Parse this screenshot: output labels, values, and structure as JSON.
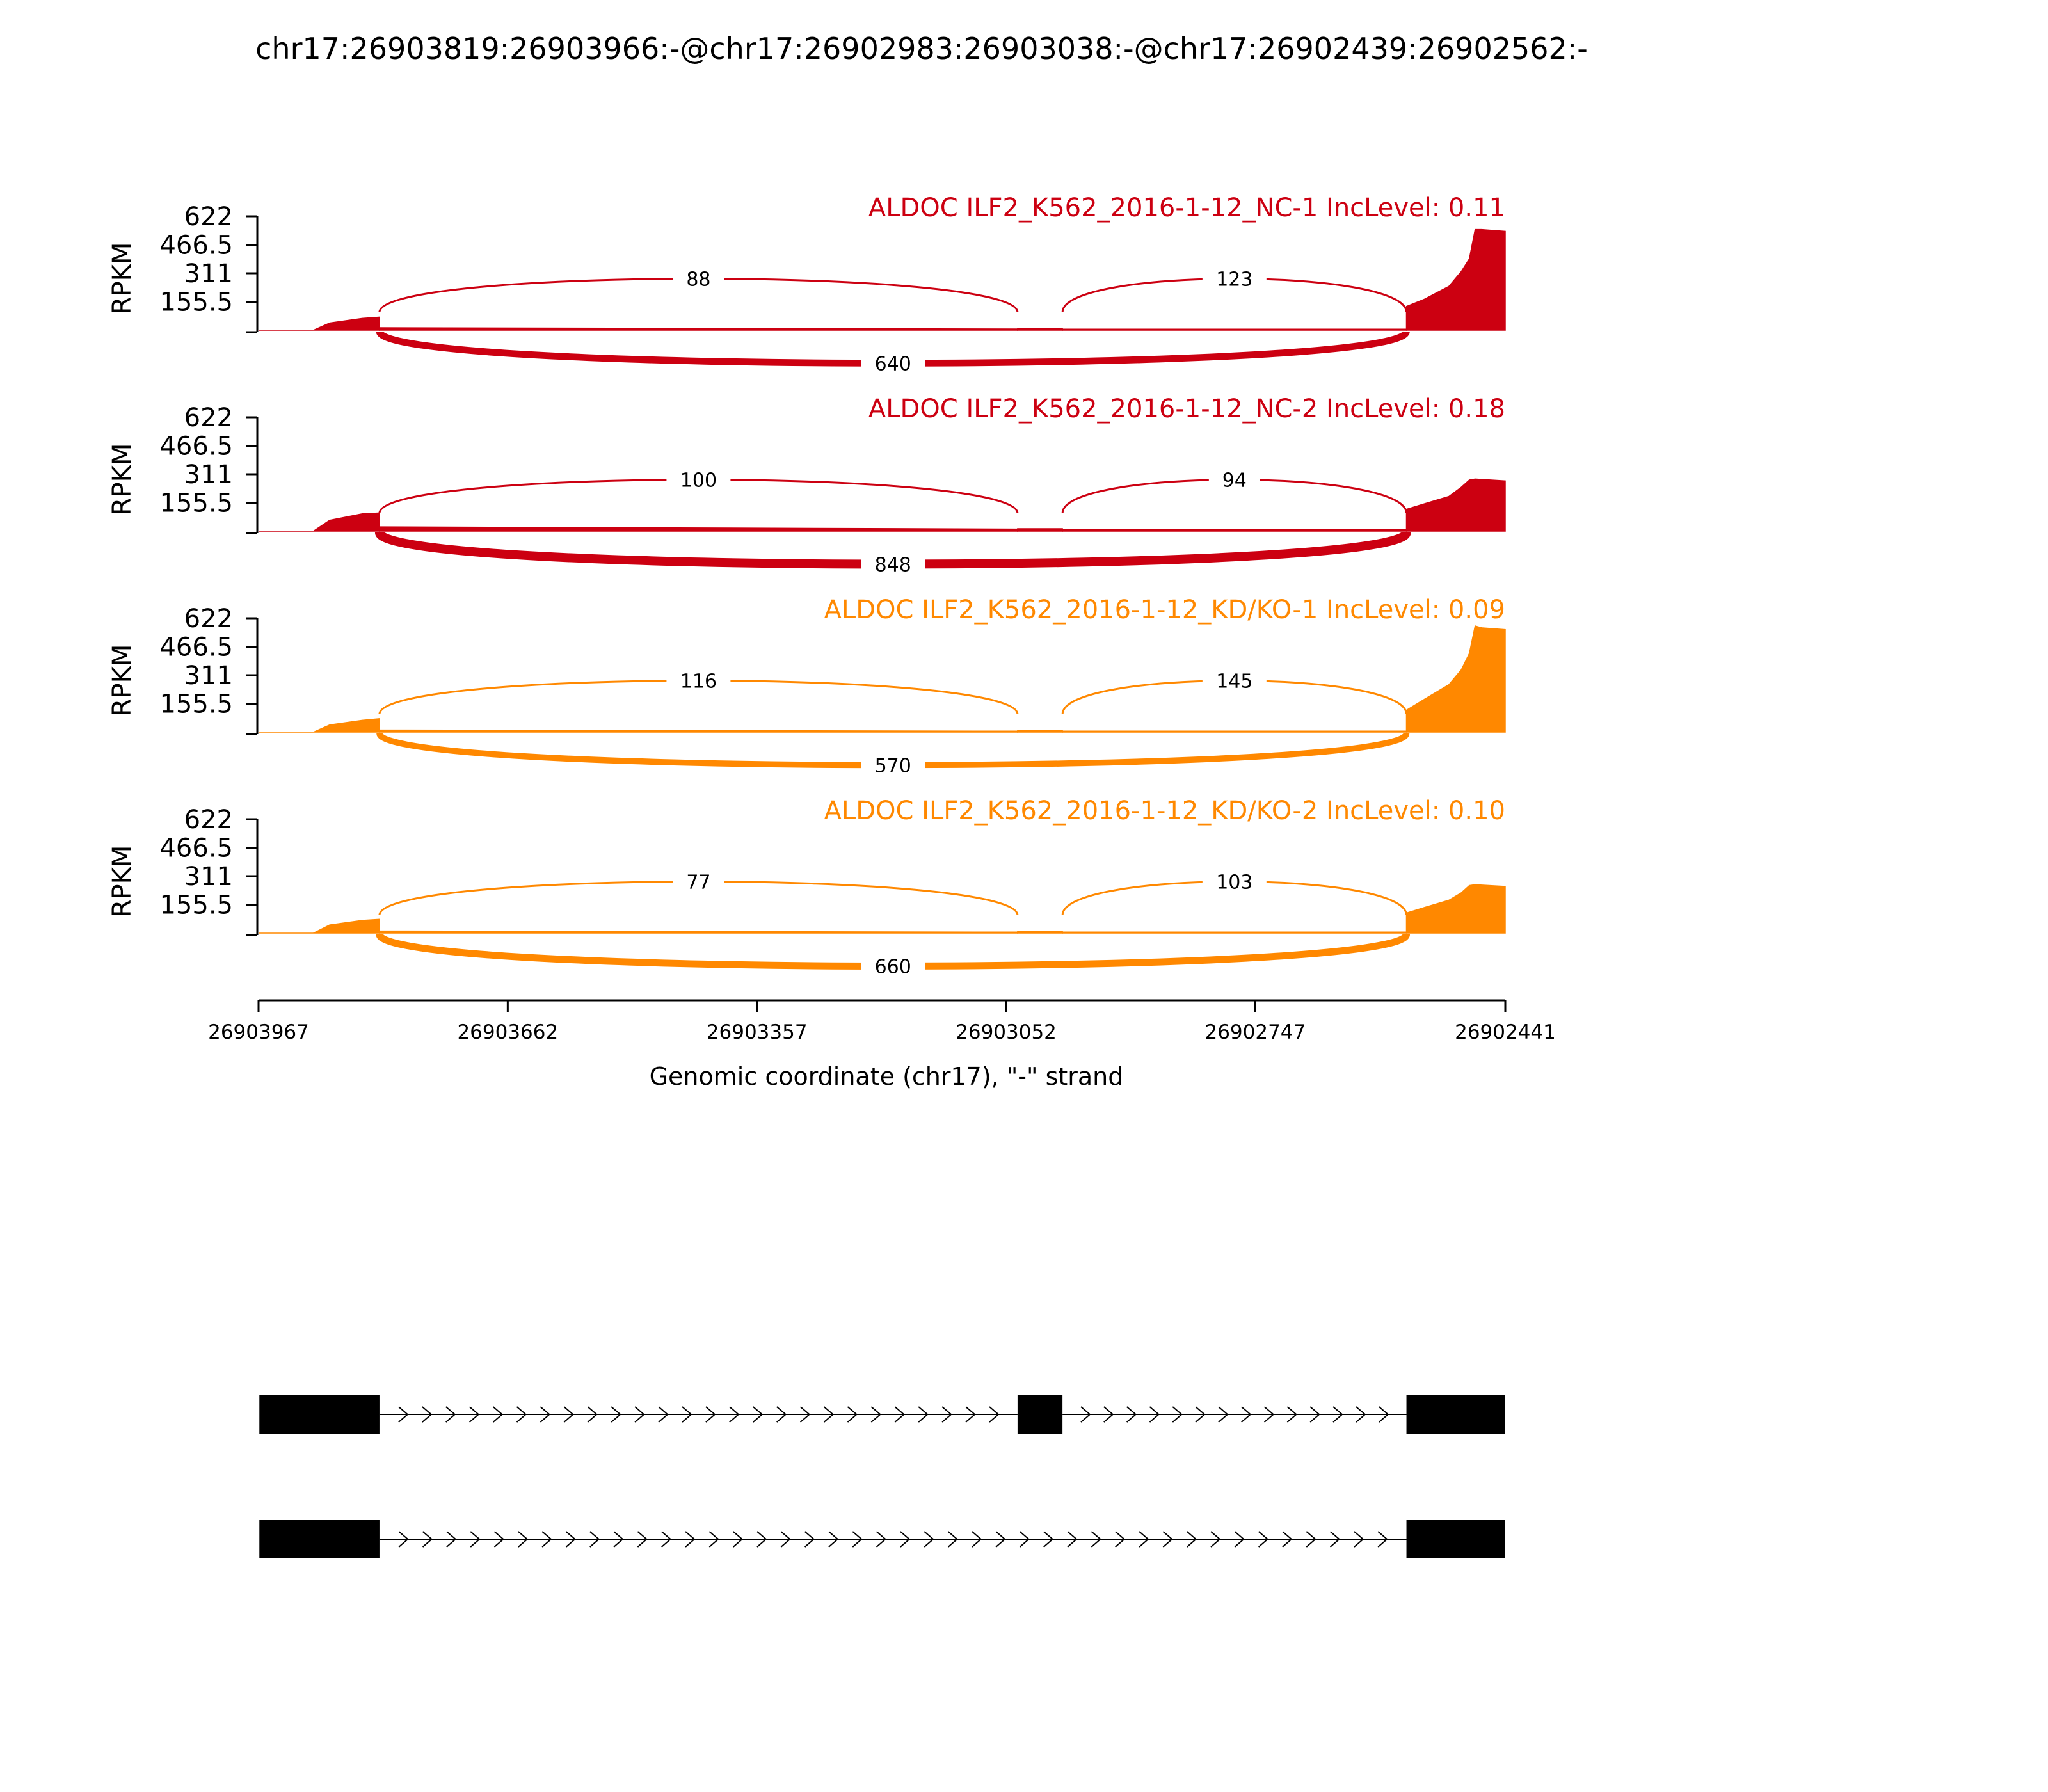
{
  "title": "chr17:26903819:26903966:-@chr17:26902983:26903038:-@chr17:26902439:26902562:-",
  "chart_data": {
    "type": "area",
    "subtype": "sashimi",
    "title": "chr17:26903819:26903966:-@chr17:26902983:26903038:-@chr17:26902439:26902562:-",
    "ylabel": "RPKM",
    "ylim": [
      0,
      622
    ],
    "yticks": [
      "622",
      "466.5",
      "311",
      "155.5"
    ],
    "yticks_values": [
      622,
      466.5,
      311,
      155.5
    ],
    "xlabel": "Genomic coordinate (chr17), \"-\" strand",
    "xlim": [
      26903967,
      26902441
    ],
    "xticks": [
      "26903967",
      "26903662",
      "26903357",
      "26903052",
      "26902747",
      "26902441"
    ],
    "xticks_values": [
      26903967,
      26903662,
      26903357,
      26903052,
      26902747,
      26902441
    ],
    "exons": [
      {
        "start": 26903966,
        "end": 26903819
      },
      {
        "start": 26903038,
        "end": 26902983
      },
      {
        "start": 26902562,
        "end": 26902441
      }
    ],
    "samples": [
      {
        "label": "ALDOC ILF2_K562_2016-1-12_NC-1 IncLevel: 0.11",
        "color": "#cc0011",
        "coverage": {
          "exon1": [
            [
              26903967,
              0
            ],
            [
              26903900,
              0
            ],
            [
              26903880,
              40
            ],
            [
              26903840,
              65
            ],
            [
              26903819,
              72
            ]
          ],
          "intron1": [
            [
              26903819,
              14
            ],
            [
              26903038,
              7
            ]
          ],
          "exon2": [
            [
              26903038,
              8
            ],
            [
              26902983,
              8
            ]
          ],
          "intron2": [
            [
              26902983,
              6
            ],
            [
              26902562,
              6
            ]
          ],
          "exon3": [
            [
              26902562,
              130
            ],
            [
              26902540,
              170
            ],
            [
              26902510,
              240
            ],
            [
              26902495,
              320
            ],
            [
              26902485,
              390
            ],
            [
              26902478,
              550
            ],
            [
              26902470,
              550
            ],
            [
              26902441,
              540
            ]
          ]
        },
        "junctions": [
          {
            "from": "exon1",
            "to": "exon2",
            "count": 88,
            "side": "above"
          },
          {
            "from": "exon2",
            "to": "exon3",
            "count": 123,
            "side": "above"
          },
          {
            "from": "exon1",
            "to": "exon3",
            "count": 640,
            "side": "below"
          }
        ]
      },
      {
        "label": "ALDOC ILF2_K562_2016-1-12_NC-2 IncLevel: 0.18",
        "color": "#cc0011",
        "coverage": {
          "exon1": [
            [
              26903967,
              0
            ],
            [
              26903900,
              0
            ],
            [
              26903880,
              60
            ],
            [
              26903840,
              95
            ],
            [
              26903819,
              100
            ]
          ],
          "intron1": [
            [
              26903819,
              24
            ],
            [
              26903038,
              12
            ]
          ],
          "exon2": [
            [
              26903038,
              14
            ],
            [
              26902983,
              14
            ]
          ],
          "intron2": [
            [
              26902983,
              10
            ],
            [
              26902562,
              10
            ]
          ],
          "exon3": [
            [
              26902562,
              120
            ],
            [
              26902540,
              150
            ],
            [
              26902510,
              190
            ],
            [
              26902495,
              240
            ],
            [
              26902485,
              280
            ],
            [
              26902478,
              285
            ],
            [
              26902441,
              275
            ]
          ]
        },
        "junctions": [
          {
            "from": "exon1",
            "to": "exon2",
            "count": 100,
            "side": "above"
          },
          {
            "from": "exon2",
            "to": "exon3",
            "count": 94,
            "side": "above"
          },
          {
            "from": "exon1",
            "to": "exon3",
            "count": 848,
            "side": "below"
          }
        ]
      },
      {
        "label": "ALDOC ILF2_K562_2016-1-12_KD/KO-1 IncLevel: 0.09",
        "color": "#ff8800",
        "coverage": {
          "exon1": [
            [
              26903967,
              0
            ],
            [
              26903900,
              0
            ],
            [
              26903880,
              40
            ],
            [
              26903840,
              65
            ],
            [
              26903819,
              74
            ]
          ],
          "intron1": [
            [
              26903819,
              12
            ],
            [
              26903038,
              6
            ]
          ],
          "exon2": [
            [
              26903038,
              8
            ],
            [
              26902983,
              8
            ]
          ],
          "intron2": [
            [
              26902983,
              6
            ],
            [
              26902562,
              6
            ]
          ],
          "exon3": [
            [
              26902562,
              120
            ],
            [
              26902540,
              180
            ],
            [
              26902510,
              260
            ],
            [
              26902495,
              340
            ],
            [
              26902485,
              430
            ],
            [
              26902478,
              580
            ],
            [
              26902470,
              570
            ],
            [
              26902441,
              560
            ]
          ]
        },
        "junctions": [
          {
            "from": "exon1",
            "to": "exon2",
            "count": 116,
            "side": "above"
          },
          {
            "from": "exon2",
            "to": "exon3",
            "count": 145,
            "side": "above"
          },
          {
            "from": "exon1",
            "to": "exon3",
            "count": 570,
            "side": "below"
          }
        ]
      },
      {
        "label": "ALDOC ILF2_K562_2016-1-12_KD/KO-2 IncLevel: 0.10",
        "color": "#ff8800",
        "coverage": {
          "exon1": [
            [
              26903967,
              0
            ],
            [
              26903900,
              0
            ],
            [
              26903880,
              45
            ],
            [
              26903840,
              70
            ],
            [
              26903819,
              76
            ]
          ],
          "intron1": [
            [
              26903819,
              12
            ],
            [
              26903038,
              6
            ]
          ],
          "exon2": [
            [
              26903038,
              8
            ],
            [
              26902983,
              8
            ]
          ],
          "intron2": [
            [
              26902983,
              6
            ],
            [
              26902562,
              6
            ]
          ],
          "exon3": [
            [
              26902562,
              110
            ],
            [
              26902540,
              140
            ],
            [
              26902510,
              180
            ],
            [
              26902495,
              220
            ],
            [
              26902485,
              260
            ],
            [
              26902478,
              265
            ],
            [
              26902441,
              255
            ]
          ]
        },
        "junctions": [
          {
            "from": "exon1",
            "to": "exon2",
            "count": 77,
            "side": "above"
          },
          {
            "from": "exon2",
            "to": "exon3",
            "count": 103,
            "side": "above"
          },
          {
            "from": "exon1",
            "to": "exon3",
            "count": 660,
            "side": "below"
          }
        ]
      }
    ],
    "isoforms": [
      {
        "exons": [
          [
            26903966,
            26903819
          ],
          [
            26903038,
            26902983
          ],
          [
            26902562,
            26902441
          ]
        ]
      },
      {
        "exons": [
          [
            26903966,
            26903819
          ],
          [
            26902562,
            26902441
          ]
        ]
      }
    ]
  }
}
